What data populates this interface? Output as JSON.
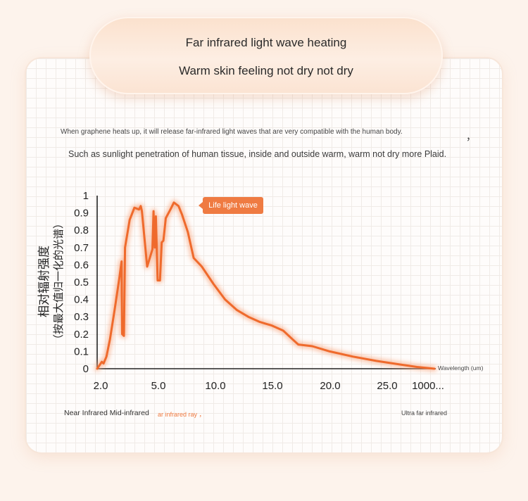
{
  "header": {
    "line1": "Far infrared light wave heating",
    "line2": "Warm skin feeling not dry not dry"
  },
  "description": {
    "line1": "When graphene heats up, it will release far-infrared light waves that are very compatible with the human body.",
    "line1_tail": "，",
    "line2": "Such as sunlight penetration of human tissue, inside and outside warm, warm not dry more Plaid."
  },
  "colors": {
    "curve": "#ef6a2c",
    "glow": "#f7a37a",
    "callout": "#ef7b42"
  },
  "chart_data": {
    "type": "line",
    "title": "",
    "xlabel": "Wavelength (um)",
    "ylabel_line1": "相对辐射强度",
    "ylabel_line2": "（按最大值归一化的光谱）",
    "ylim": [
      0,
      1
    ],
    "yticks": [
      "1",
      "0.9",
      "0.8",
      "0.7",
      "0.6",
      "0.5",
      "0.4",
      "0.3",
      "0.2",
      "0.1",
      "0"
    ],
    "xticks": [
      "2.0",
      "5.0",
      "10.0",
      "15.0",
      "20.0",
      "25.0",
      "1000..."
    ],
    "grid": false,
    "annotation": "Life light wave",
    "series": [
      {
        "points": [
          [
            0.0,
            0.0
          ],
          [
            0.2,
            0.02
          ],
          [
            0.4,
            0.04
          ],
          [
            0.55,
            0.03
          ],
          [
            0.8,
            0.07
          ],
          [
            1.1,
            0.17
          ],
          [
            1.5,
            0.34
          ],
          [
            1.9,
            0.52
          ],
          [
            2.1,
            0.62
          ],
          [
            2.15,
            0.2
          ],
          [
            2.3,
            0.19
          ],
          [
            2.4,
            0.7
          ],
          [
            2.8,
            0.86
          ],
          [
            3.2,
            0.93
          ],
          [
            3.6,
            0.92
          ],
          [
            3.75,
            0.94
          ],
          [
            3.85,
            0.91
          ],
          [
            4.3,
            0.59
          ],
          [
            4.75,
            0.69
          ],
          [
            4.85,
            0.91
          ],
          [
            4.95,
            0.7
          ],
          [
            5.05,
            0.88
          ],
          [
            5.2,
            0.51
          ],
          [
            5.4,
            0.51
          ],
          [
            5.55,
            0.73
          ],
          [
            5.7,
            0.74
          ],
          [
            5.9,
            0.87
          ],
          [
            6.3,
            0.92
          ],
          [
            6.6,
            0.96
          ],
          [
            7.0,
            0.94
          ],
          [
            7.3,
            0.89
          ],
          [
            7.8,
            0.79
          ],
          [
            8.3,
            0.64
          ],
          [
            9.0,
            0.59
          ],
          [
            10.0,
            0.49
          ],
          [
            11.0,
            0.4
          ],
          [
            12.0,
            0.34
          ],
          [
            13.0,
            0.3
          ],
          [
            14.0,
            0.27
          ],
          [
            15.0,
            0.25
          ],
          [
            16.0,
            0.22
          ],
          [
            16.8,
            0.17
          ],
          [
            17.3,
            0.14
          ],
          [
            18.5,
            0.13
          ],
          [
            20.0,
            0.1
          ],
          [
            22.0,
            0.07
          ],
          [
            24.0,
            0.045
          ],
          [
            26.0,
            0.025
          ],
          [
            27.5,
            0.01
          ],
          [
            29.0,
            0.0
          ]
        ]
      }
    ]
  },
  "regions": {
    "near_mid": "Near Infrared Mid-infrared",
    "far": "ar infrared ray",
    "far_tail": "，",
    "ultra": "Ultra far infrared"
  }
}
